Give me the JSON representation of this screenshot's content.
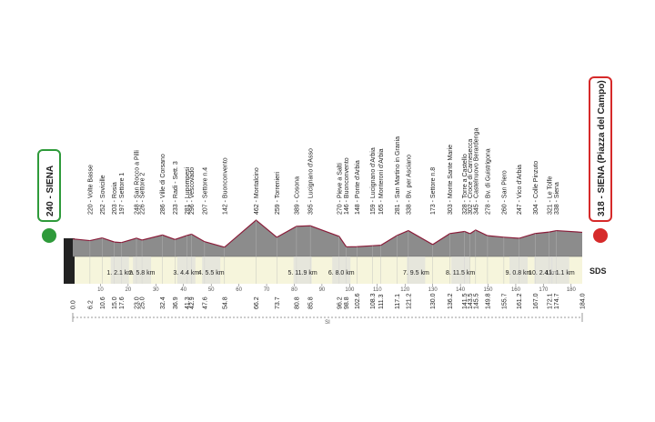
{
  "start": {
    "label": "240 - SIENA",
    "altitude": 240,
    "km": 0,
    "km_label": "0.0"
  },
  "finish": {
    "label": "318 - SIENA (Piazza del Campo)",
    "altitude": 318,
    "km": 184,
    "km_label": "184.0"
  },
  "waypoints": [
    {
      "label": "220 - Volte Basse",
      "altitude": 220,
      "km": 6.2,
      "km_label": "6.2"
    },
    {
      "label": "252 - Sovicille",
      "altitude": 252,
      "km": 10.6,
      "km_label": "10.6"
    },
    {
      "label": "203 - Rosia",
      "altitude": 203,
      "km": 15.0,
      "km_label": "15.0"
    },
    {
      "label": "197 - Settore 1",
      "altitude": 197,
      "km": 17.6,
      "km_label": "17.6"
    },
    {
      "label": "248 - San Rocco a Pilli",
      "altitude": 248,
      "km": 23.0,
      "km_label": "23.0"
    },
    {
      "label": "226 - Settore 2",
      "altitude": 226,
      "km": 25.0,
      "km_label": "25.0"
    },
    {
      "label": "286 - Ville di Corsano",
      "altitude": 286,
      "km": 32.4,
      "km_label": "32.4"
    },
    {
      "label": "233 - Radi - Sett. 3",
      "altitude": 233,
      "km": 36.9,
      "km_label": "36.9"
    },
    {
      "label": "281 - Lupompesi",
      "altitude": 281,
      "km": 41.3,
      "km_label": "41.3"
    },
    {
      "label": "296 - Vescovado",
      "altitude": 296,
      "km": 42.9,
      "km_label": "42.9"
    },
    {
      "label": "207 - Settore n.4",
      "altitude": 207,
      "km": 47.6,
      "km_label": "47.6"
    },
    {
      "label": "142 - Buonconvento",
      "altitude": 142,
      "km": 54.8,
      "km_label": "54.8"
    },
    {
      "label": "462 - Montalcino",
      "altitude": 462,
      "km": 66.2,
      "km_label": "66.2"
    },
    {
      "label": "259 - Torrenieri",
      "altitude": 259,
      "km": 73.7,
      "km_label": "73.7"
    },
    {
      "label": "389 - Cosona",
      "altitude": 389,
      "km": 80.8,
      "km_label": "80.8"
    },
    {
      "label": "395 - Lucignano d'Asso",
      "altitude": 395,
      "km": 85.8,
      "km_label": "85.8"
    },
    {
      "label": "270 - Pieve a Salti",
      "altitude": 270,
      "km": 96.2,
      "km_label": "96.2"
    },
    {
      "label": "146 - Buonconvento",
      "altitude": 146,
      "km": 98.8,
      "km_label": "98.8"
    },
    {
      "label": "148 - Ponte d'Arbia",
      "altitude": 148,
      "km": 102.6,
      "km_label": "102.6"
    },
    {
      "label": "159 - Lucignano d'Arbia",
      "altitude": 159,
      "km": 108.3,
      "km_label": "108.3"
    },
    {
      "label": "165 - Monteroni d'Arbia",
      "altitude": 165,
      "km": 111.3,
      "km_label": "111.3"
    },
    {
      "label": "281 - San Martino in Grania",
      "altitude": 281,
      "km": 117.1,
      "km_label": "117.1"
    },
    {
      "label": "338 - Bv. per Asciano",
      "altitude": 338,
      "km": 121.2,
      "km_label": "121.2"
    },
    {
      "label": "173 - Settore n.8",
      "altitude": 173,
      "km": 130.0,
      "km_label": "130.0"
    },
    {
      "label": "303 - Monte Sante Marie",
      "altitude": 303,
      "km": 136.2,
      "km_label": "136.2"
    },
    {
      "label": "328 - Torre a Castello",
      "altitude": 328,
      "km": 141.5,
      "km_label": "141.5"
    },
    {
      "label": "302 - Croce di Carnesecca",
      "altitude": 302,
      "km": 143.5,
      "km_label": "143.5"
    },
    {
      "label": "345 - Castelnuovo Berardenga",
      "altitude": 345,
      "km": 145.5,
      "km_label": "145.5"
    },
    {
      "label": "278 - Bv. di Guistrigona",
      "altitude": 278,
      "km": 149.8,
      "km_label": "149.8"
    },
    {
      "label": "260 - San Piero",
      "altitude": 260,
      "km": 155.7,
      "km_label": "155.7"
    },
    {
      "label": "247 - Vico d'Arbia",
      "altitude": 247,
      "km": 161.2,
      "km_label": "161.2"
    },
    {
      "label": "304 - Colle Pinzuto",
      "altitude": 304,
      "km": 167.0,
      "km_label": "167.0"
    },
    {
      "label": "321 - Le Tolfe",
      "altitude": 321,
      "km": 172.1,
      "km_label": "172.1"
    },
    {
      "label": "338 - Siena",
      "altitude": 338,
      "km": 174.7,
      "km_label": "174.7"
    }
  ],
  "sectors": [
    "1. 2.1 km",
    "2. 5.8 km",
    "3. 4.4 km",
    "4. 5.5 km",
    "5. 11.9 km",
    "6. 8.0 km",
    "7. 9.5 km",
    "8. 11.5 km",
    "9. 0.8 km",
    "10. 2.4 km",
    "11. 1.1 km"
  ],
  "km_ticks": [
    10,
    20,
    30,
    40,
    50,
    60,
    70,
    80,
    90,
    100,
    110,
    120,
    130,
    140,
    150,
    160,
    170,
    180
  ],
  "ruler_label": "SI",
  "logo": "SDS"
}
